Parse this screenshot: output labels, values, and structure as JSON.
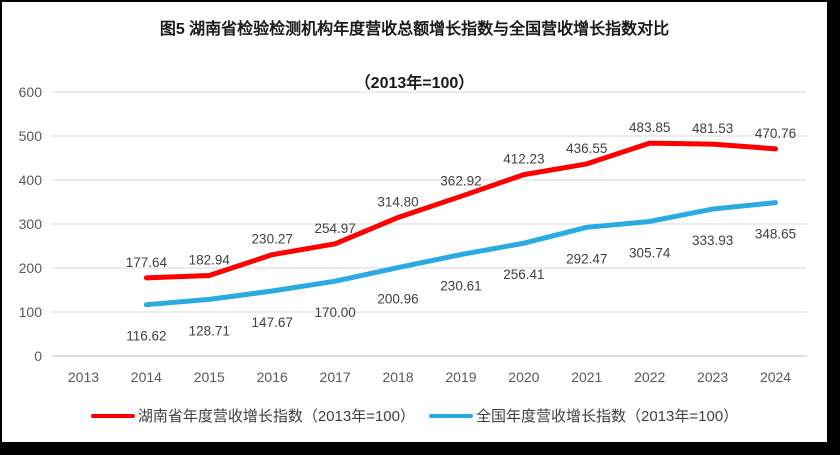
{
  "title": {
    "line1": "图5 湖南省检验检测机构年度营收总额增长指数与全国营收增长指数对比",
    "line2": "（2013年=100）"
  },
  "chart_data": {
    "type": "line",
    "categories": [
      "2013",
      "2014",
      "2015",
      "2016",
      "2017",
      "2018",
      "2019",
      "2020",
      "2021",
      "2022",
      "2023",
      "2024"
    ],
    "series": [
      {
        "name": "湖南省年度营收增长指数（2013年=100）",
        "color": "#FF0000",
        "label_position": "above",
        "values": [
          null,
          177.64,
          182.94,
          230.27,
          254.97,
          314.8,
          362.92,
          412.23,
          436.55,
          483.85,
          481.53,
          470.76
        ]
      },
      {
        "name": "全国年度营收增长指数（2013年=100）",
        "color": "#29ABE2",
        "label_position": "below",
        "values": [
          null,
          116.62,
          128.71,
          147.67,
          170.0,
          200.96,
          230.61,
          256.41,
          292.47,
          305.74,
          333.93,
          348.65
        ]
      }
    ],
    "ylim": [
      0,
      600
    ],
    "ytick_step": 100,
    "yticks": [
      0,
      100,
      200,
      300,
      400,
      500,
      600
    ],
    "grid": true,
    "legend_position": "bottom",
    "data_label_decimals": 2
  },
  "colors": {
    "gridline": "#D9D9D9",
    "axis_line": "#BFBFBF",
    "tick_label": "#595959",
    "data_label": "#404040",
    "frame": "#000000",
    "background": "#FFFFFF"
  }
}
